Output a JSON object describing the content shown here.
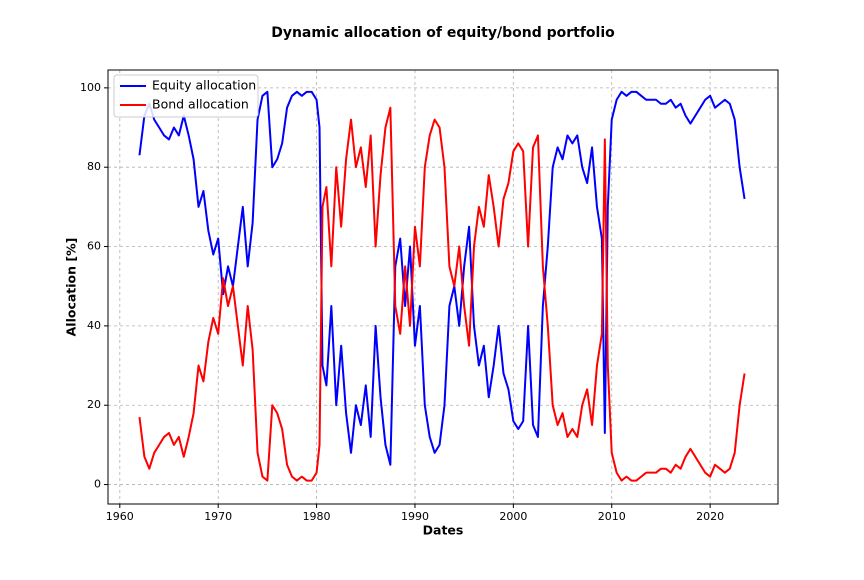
{
  "chart_data": {
    "type": "line",
    "title": "Dynamic allocation of equity/bond portfolio",
    "xlabel": "Dates",
    "ylabel": "Allocation [%]",
    "x": [
      1962,
      1962.5,
      1963,
      1963.5,
      1964,
      1964.5,
      1965,
      1965.5,
      1966,
      1966.5,
      1967,
      1967.5,
      1968,
      1968.5,
      1969,
      1969.5,
      1970,
      1970.5,
      1971,
      1971.5,
      1972,
      1972.5,
      1973,
      1973.5,
      1974,
      1974.5,
      1975,
      1975.5,
      1976,
      1976.5,
      1977,
      1977.5,
      1978,
      1978.5,
      1979,
      1979.5,
      1980,
      1980.3,
      1980.6,
      1981,
      1981.5,
      1982,
      1982.5,
      1983,
      1983.5,
      1984,
      1984.5,
      1985,
      1985.5,
      1986,
      1986.5,
      1987,
      1987.5,
      1988,
      1988.5,
      1989,
      1989.5,
      1990,
      1990.5,
      1991,
      1991.5,
      1992,
      1992.5,
      1993,
      1993.5,
      1994,
      1994.5,
      1995,
      1995.5,
      1996,
      1996.5,
      1997,
      1997.5,
      1998,
      1998.5,
      1999,
      1999.5,
      2000,
      2000.5,
      2001,
      2001.5,
      2002,
      2002.5,
      2003,
      2003.5,
      2004,
      2004.5,
      2005,
      2005.5,
      2006,
      2006.5,
      2007,
      2007.5,
      2008,
      2008.5,
      2009,
      2009.3,
      2009.6,
      2010,
      2010.5,
      2011,
      2011.5,
      2012,
      2012.5,
      2013,
      2013.5,
      2014,
      2014.5,
      2015,
      2015.5,
      2016,
      2016.5,
      2017,
      2017.5,
      2018,
      2018.5,
      2019,
      2019.5,
      2020,
      2020.5,
      2021,
      2021.5,
      2022,
      2022.5,
      2023,
      2023.5
    ],
    "series": [
      {
        "name": "Equity allocation",
        "color": "#0000ff",
        "values": [
          83,
          93,
          96,
          92,
          90,
          88,
          87,
          90,
          88,
          93,
          88,
          82,
          70,
          74,
          64,
          58,
          62,
          48,
          55,
          50,
          60,
          70,
          55,
          66,
          92,
          98,
          99,
          80,
          82,
          86,
          95,
          98,
          99,
          98,
          99,
          99,
          97,
          90,
          30,
          25,
          45,
          20,
          35,
          18,
          8,
          20,
          15,
          25,
          12,
          40,
          22,
          10,
          5,
          55,
          62,
          45,
          60,
          35,
          45,
          20,
          12,
          8,
          10,
          20,
          45,
          50,
          40,
          55,
          65,
          40,
          30,
          35,
          22,
          30,
          40,
          28,
          24,
          16,
          14,
          16,
          40,
          15,
          12,
          45,
          60,
          80,
          85,
          82,
          88,
          86,
          88,
          80,
          76,
          85,
          70,
          62,
          13,
          70,
          92,
          97,
          99,
          98,
          99,
          99,
          98,
          97,
          97,
          97,
          96,
          96,
          97,
          95,
          96,
          93,
          91,
          93,
          95,
          97,
          98,
          95,
          96,
          97,
          96,
          92,
          80,
          72
        ]
      },
      {
        "name": "Bond allocation",
        "color": "#ff0000",
        "values": [
          17,
          7,
          4,
          8,
          10,
          12,
          13,
          10,
          12,
          7,
          12,
          18,
          30,
          26,
          36,
          42,
          38,
          52,
          45,
          50,
          40,
          30,
          45,
          34,
          8,
          2,
          1,
          20,
          18,
          14,
          5,
          2,
          1,
          2,
          1,
          1,
          3,
          10,
          70,
          75,
          55,
          80,
          65,
          82,
          92,
          80,
          85,
          75,
          88,
          60,
          78,
          90,
          95,
          45,
          38,
          55,
          40,
          65,
          55,
          80,
          88,
          92,
          90,
          80,
          55,
          50,
          60,
          45,
          35,
          60,
          70,
          65,
          78,
          70,
          60,
          72,
          76,
          84,
          86,
          84,
          60,
          85,
          88,
          55,
          40,
          20,
          15,
          18,
          12,
          14,
          12,
          20,
          24,
          15,
          30,
          38,
          87,
          30,
          8,
          3,
          1,
          2,
          1,
          1,
          2,
          3,
          3,
          3,
          4,
          4,
          3,
          5,
          4,
          7,
          9,
          7,
          5,
          3,
          2,
          5,
          4,
          3,
          4,
          8,
          20,
          28
        ]
      }
    ],
    "xlim": [
      1958.8,
      2026.9
    ],
    "ylim": [
      -4.9,
      104.5
    ],
    "xticks": [
      1960,
      1970,
      1980,
      1990,
      2000,
      2010,
      2020
    ],
    "yticks": [
      0,
      20,
      40,
      60,
      80,
      100
    ],
    "grid": true,
    "legend": "upper left"
  }
}
